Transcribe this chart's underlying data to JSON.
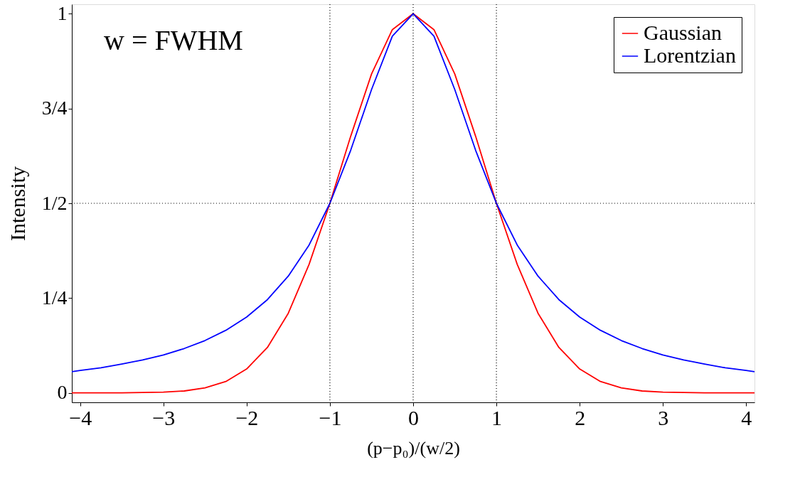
{
  "chart_data": {
    "type": "line",
    "xlabel": "(p−p₀)/(w/2)",
    "ylabel": "Intensity",
    "annotations": [
      "w = FWHM"
    ],
    "x": [
      -4.1,
      -4,
      -3.75,
      -3.5,
      -3.25,
      -3,
      -2.75,
      -2.5,
      -2.25,
      -2,
      -1.75,
      -1.5,
      -1.25,
      -1,
      -0.75,
      -0.5,
      -0.25,
      0,
      0.25,
      0.5,
      0.75,
      1,
      1.25,
      1.5,
      1.75,
      2,
      2.25,
      2.5,
      2.75,
      3,
      3.25,
      3.5,
      3.75,
      4,
      4.1
    ],
    "series": [
      {
        "name": "Gaussian",
        "color": "#ff0000",
        "values": [
          0.0,
          0.0,
          0.0,
          0.0,
          0.001,
          0.002,
          0.005,
          0.013,
          0.03,
          0.063,
          0.12,
          0.21,
          0.339,
          0.5,
          0.677,
          0.841,
          0.958,
          1,
          0.958,
          0.841,
          0.677,
          0.5,
          0.339,
          0.21,
          0.12,
          0.063,
          0.03,
          0.013,
          0.005,
          0.002,
          0.001,
          0.0,
          0.0,
          0.0,
          0.0
        ]
      },
      {
        "name": "Lorentzian",
        "color": "#0000ff",
        "values": [
          0.056,
          0.059,
          0.066,
          0.076,
          0.087,
          0.1,
          0.117,
          0.138,
          0.165,
          0.2,
          0.246,
          0.308,
          0.39,
          0.5,
          0.64,
          0.8,
          0.941,
          1,
          0.941,
          0.8,
          0.64,
          0.5,
          0.39,
          0.308,
          0.246,
          0.2,
          0.165,
          0.138,
          0.117,
          0.1,
          0.087,
          0.076,
          0.066,
          0.059,
          0.056
        ]
      }
    ],
    "xlim": [
      -4.1,
      4.1
    ],
    "ylim": [
      -0.025,
      1.025
    ],
    "xticks": [
      -4,
      -3,
      -2,
      -1,
      0,
      1,
      2,
      3,
      4
    ],
    "yticks": [
      0,
      {
        "value": 0.25,
        "label": "1/4"
      },
      {
        "value": 0.5,
        "label": "1/2"
      },
      {
        "value": 0.75,
        "label": "3/4"
      },
      1
    ],
    "ref_lines": [
      {
        "axis": "x",
        "value": -1,
        "line_style": "dotted",
        "color": "#000000"
      },
      {
        "axis": "x",
        "value": 0,
        "line_style": "dotted",
        "color": "#000000"
      },
      {
        "axis": "x",
        "value": 1,
        "line_style": "dotted",
        "color": "#000000"
      },
      {
        "axis": "y",
        "value": 0.5,
        "line_style": "dotted",
        "color": "#000000"
      }
    ],
    "grid": false,
    "legend": "top right",
    "marker": "none",
    "line_style": "solid"
  }
}
